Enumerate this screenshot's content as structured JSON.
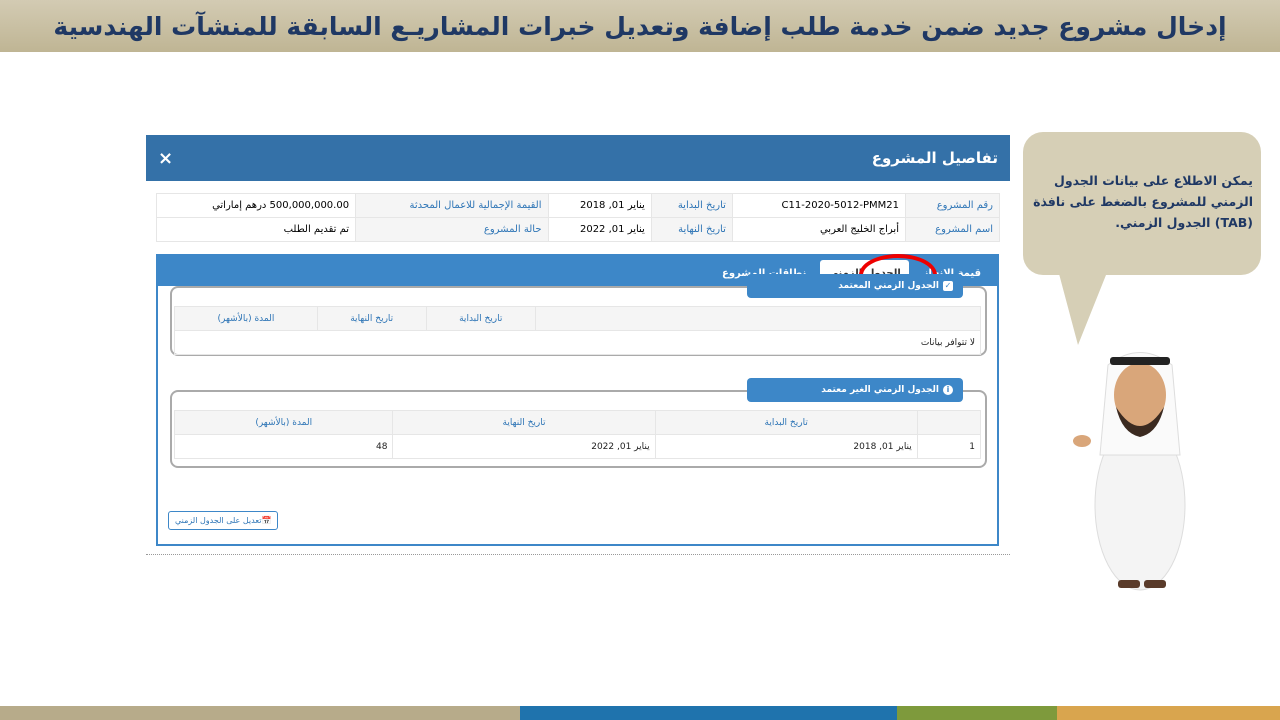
{
  "slide_title": "إدخال مشروع جديد ضمن خدمة طلب إضافة وتعديل خبرات المشاريـع السابقة للمنشآت الهندسية",
  "modal": {
    "title": "تفاصيل المشروع",
    "close": "×",
    "info": [
      [
        {
          "label": "رقم المشروع",
          "value": "C11-2020-5012-PMM21"
        },
        {
          "label": "تاريخ البداية",
          "value": "يناير 01, 2018"
        },
        {
          "label": "القيمة الإجمالية للاعمال المحدثة",
          "value": "500,000,000.00 درهم إماراتي"
        }
      ],
      [
        {
          "label": "اسم المشروع",
          "value": "أبراج الخليج العربي"
        },
        {
          "label": "تاريخ النهاية",
          "value": "يناير 01, 2022"
        },
        {
          "label": "حالة المشروع",
          "value": "تم تقديم الطلب"
        }
      ]
    ],
    "tabs": [
      "قيمة الإنجاز",
      "الجدول الزمني",
      "نطاقات المشروع"
    ],
    "approved": {
      "title": "الجدول الزمني المعتمد",
      "headers": [
        "",
        "تاريخ البداية",
        "تاريخ النهاية",
        "المدة (بالأشهر)"
      ],
      "empty": "لا تتوافر بيانات"
    },
    "unapproved": {
      "title": "الجدول الزمني الغير معتمد",
      "headers": [
        "",
        "تاريخ البداية",
        "تاريخ النهاية",
        "المدة (بالأشهر)"
      ],
      "rows": [
        [
          "1",
          "يناير 01, 2018",
          "يناير 01, 2022",
          "48"
        ]
      ]
    },
    "edit_button": "تعديل على الجدول الزمني"
  },
  "bubble": "يمكن الاطلاع على بيانات الجدول الزمني للمشروع بالضغط على نافذة (TAB) الجدول الزمني.",
  "colors": {
    "header_blue": "#3471a8",
    "panel_blue": "#3d87c8",
    "highlight": "#e00000",
    "bubble": "#d6cfb6"
  }
}
